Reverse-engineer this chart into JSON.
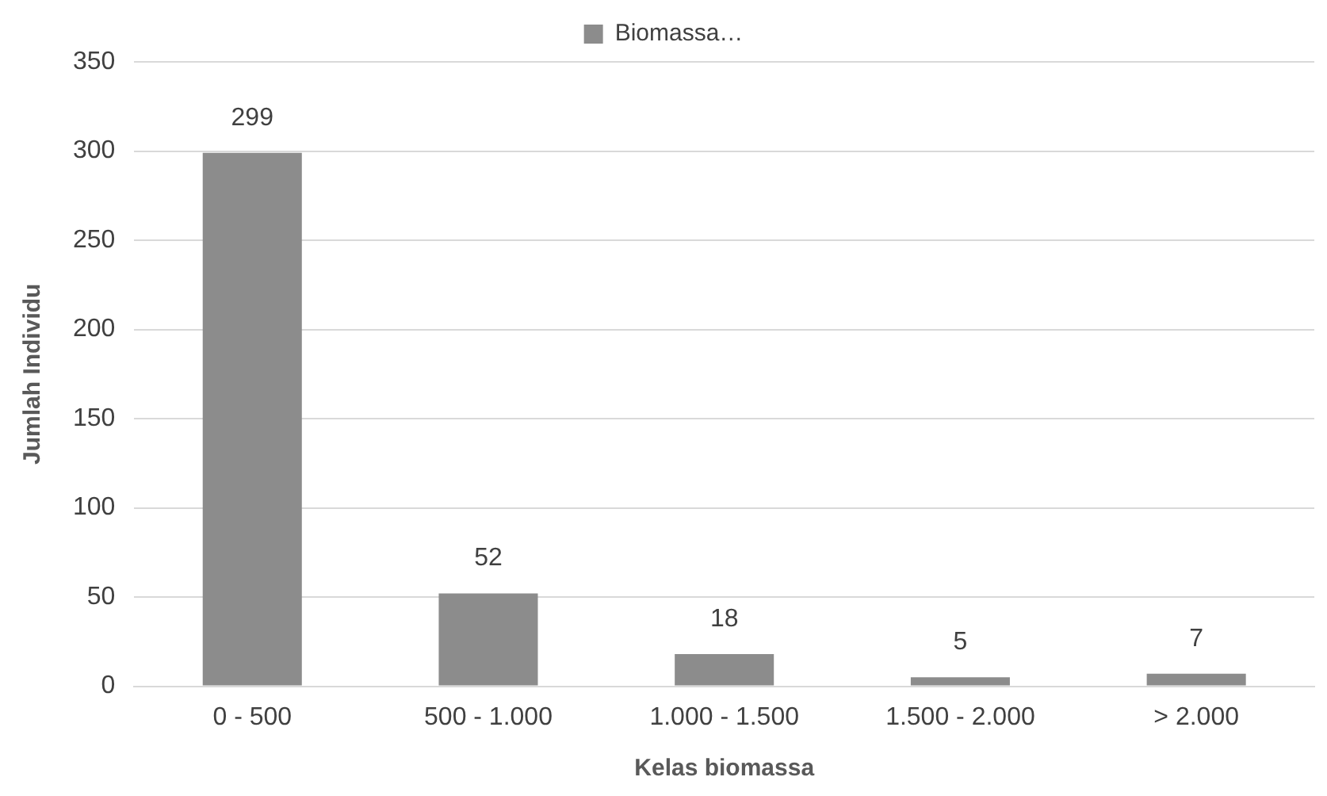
{
  "chart_data": {
    "type": "bar",
    "xlabel": "Kelas biomassa",
    "ylabel": "Jumlah Individu",
    "categories": [
      "0 - 500",
      "500 - 1.000",
      "1.000 - 1.500",
      "1.500 - 2.000",
      "> 2.000"
    ],
    "series": [
      {
        "name": "Biomassa…",
        "color": "#8c8c8c",
        "values": [
          299,
          52,
          18,
          5,
          7
        ]
      }
    ],
    "ylim": [
      0,
      350
    ],
    "yticks": [
      0,
      50,
      100,
      150,
      200,
      250,
      300,
      350
    ],
    "grid": "y",
    "legend": "top",
    "data_labels": true
  }
}
